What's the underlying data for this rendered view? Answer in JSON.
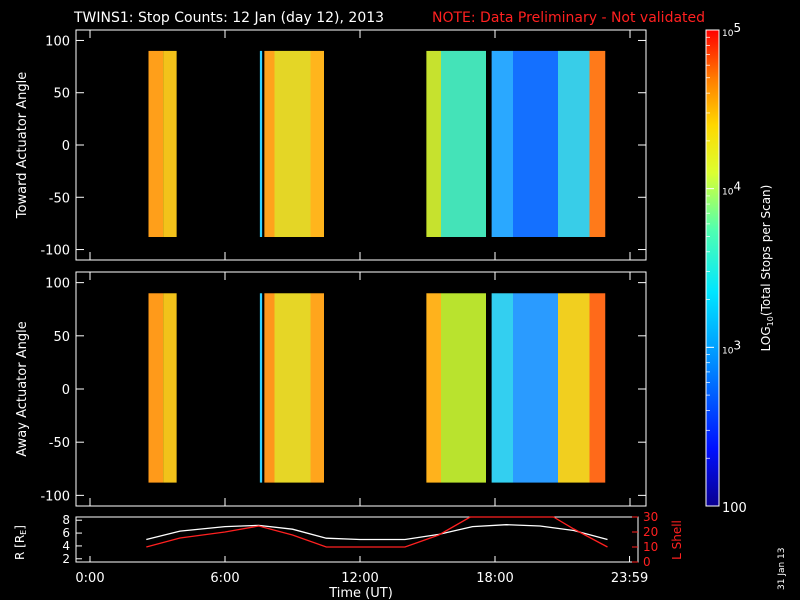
{
  "title": {
    "main": "TWINS1: Stop Counts: 12 Jan (day  12), 2013",
    "note": "NOTE: Data Preliminary - Not validated",
    "note_color": "#ff2020"
  },
  "footer_date": "31 Jan 13",
  "chart_data": [
    {
      "type": "heatmap",
      "name": "toward",
      "ylabel": "Toward Actuator Angle",
      "ylim": [
        -110,
        110
      ],
      "yticks": [
        "100",
        "50",
        "0",
        "-50",
        "-100"
      ],
      "ytick_values": [
        100,
        50,
        0,
        -50,
        -100
      ],
      "x_range_hours": [
        0,
        24
      ],
      "data_y_range": [
        -88,
        90
      ],
      "segments": [
        {
          "start_h": 2.6,
          "end_h": 3.25,
          "base_color": "#ff9f1a"
        },
        {
          "start_h": 3.25,
          "end_h": 3.85,
          "base_color": "#f3c21a"
        },
        {
          "start_h": 7.55,
          "end_h": 7.65,
          "base_color": "#33d1ff"
        },
        {
          "start_h": 7.75,
          "end_h": 8.2,
          "base_color": "#ffa21c"
        },
        {
          "start_h": 8.2,
          "end_h": 9.8,
          "base_color": "#e4d626"
        },
        {
          "start_h": 9.8,
          "end_h": 10.4,
          "base_color": "#ffb51c"
        },
        {
          "start_h": 14.95,
          "end_h": 15.6,
          "base_color": "#c6e22e"
        },
        {
          "start_h": 15.6,
          "end_h": 17.6,
          "base_color": "#44e3b8"
        },
        {
          "start_h": 17.85,
          "end_h": 18.8,
          "base_color": "#2aa8ff"
        },
        {
          "start_h": 18.8,
          "end_h": 20.8,
          "base_color": "#1470ff"
        },
        {
          "start_h": 20.8,
          "end_h": 22.2,
          "base_color": "#38cde8"
        },
        {
          "start_h": 22.2,
          "end_h": 22.9,
          "base_color": "#ff7a1a"
        }
      ]
    },
    {
      "type": "heatmap",
      "name": "away",
      "ylabel": "Away Actuator Angle",
      "ylim": [
        -110,
        110
      ],
      "yticks": [
        "100",
        "50",
        "0",
        "-50",
        "-100"
      ],
      "ytick_values": [
        100,
        50,
        0,
        -50,
        -100
      ],
      "x_range_hours": [
        0,
        24
      ],
      "data_y_range": [
        -88,
        90
      ],
      "segments": [
        {
          "start_h": 2.6,
          "end_h": 3.25,
          "base_color": "#ff9a1a"
        },
        {
          "start_h": 3.25,
          "end_h": 3.85,
          "base_color": "#f2c21a"
        },
        {
          "start_h": 7.55,
          "end_h": 7.65,
          "base_color": "#33d1ff"
        },
        {
          "start_h": 7.75,
          "end_h": 8.2,
          "base_color": "#ff961c"
        },
        {
          "start_h": 8.2,
          "end_h": 9.8,
          "base_color": "#e6d626"
        },
        {
          "start_h": 9.8,
          "end_h": 10.4,
          "base_color": "#ffa51c"
        },
        {
          "start_h": 14.95,
          "end_h": 15.6,
          "base_color": "#ffb21c"
        },
        {
          "start_h": 15.6,
          "end_h": 17.6,
          "base_color": "#b9e32e"
        },
        {
          "start_h": 17.85,
          "end_h": 18.8,
          "base_color": "#33cff0"
        },
        {
          "start_h": 18.8,
          "end_h": 20.8,
          "base_color": "#2a9bff"
        },
        {
          "start_h": 20.8,
          "end_h": 22.2,
          "base_color": "#f1cf1f"
        },
        {
          "start_h": 22.2,
          "end_h": 22.9,
          "base_color": "#ff6a1a"
        }
      ]
    },
    {
      "type": "line",
      "name": "orbit",
      "ylabel_left": "R [R",
      "ylabel_left_sub": "E",
      "ylabel_left_end": "]",
      "ylabel_right": "L Shell",
      "ylim_left": [
        1.5,
        8.5
      ],
      "yticks_left": [
        "8",
        "6",
        "4",
        "2"
      ],
      "ytick_values_left": [
        8,
        6,
        4,
        2
      ],
      "ylim_right": [
        0,
        30
      ],
      "yticks_right": [
        "30",
        "20",
        "10",
        "0"
      ],
      "ytick_values_right": [
        30,
        20,
        10,
        0
      ],
      "xlabel": "Time (UT)",
      "xticks": [
        "0:00",
        "6:00",
        "12:00",
        "18:00",
        "23:59"
      ],
      "xtick_values": [
        0,
        6,
        12,
        18,
        23.98
      ],
      "series": [
        {
          "axis": "left",
          "color": "#ffffff",
          "x": [
            2.5,
            4,
            6,
            7.5,
            9,
            10.5,
            12,
            14,
            15.5,
            17,
            18.5,
            20,
            21.5,
            23
          ],
          "y": [
            5.0,
            6.3,
            7.0,
            7.2,
            6.6,
            5.2,
            5.0,
            5.0,
            5.8,
            7.0,
            7.3,
            7.1,
            6.4,
            5.0
          ]
        },
        {
          "axis": "right",
          "color": "#ff2020",
          "x": [
            2.5,
            4,
            6,
            7.5,
            9,
            10.5,
            12,
            14,
            15.5,
            16.9,
            20.6,
            21.5,
            23
          ],
          "y": [
            10,
            16,
            20,
            24,
            18,
            10,
            10,
            10,
            18,
            31,
            31,
            22,
            10
          ]
        }
      ]
    },
    {
      "type": "colorbar",
      "ylabel": "LOG",
      "ylabel_sub": "10",
      "ylabel_end": "(Total Stops per Scan)",
      "log_range": [
        2,
        5
      ],
      "tick_labels": [
        {
          "base": "10",
          "exp": "5",
          "value": 5
        },
        {
          "base": "10",
          "exp": "4",
          "value": 4
        },
        {
          "base": "10",
          "exp": "3",
          "value": 3
        },
        {
          "base": "100",
          "exp": "",
          "value": 2
        }
      ]
    }
  ]
}
